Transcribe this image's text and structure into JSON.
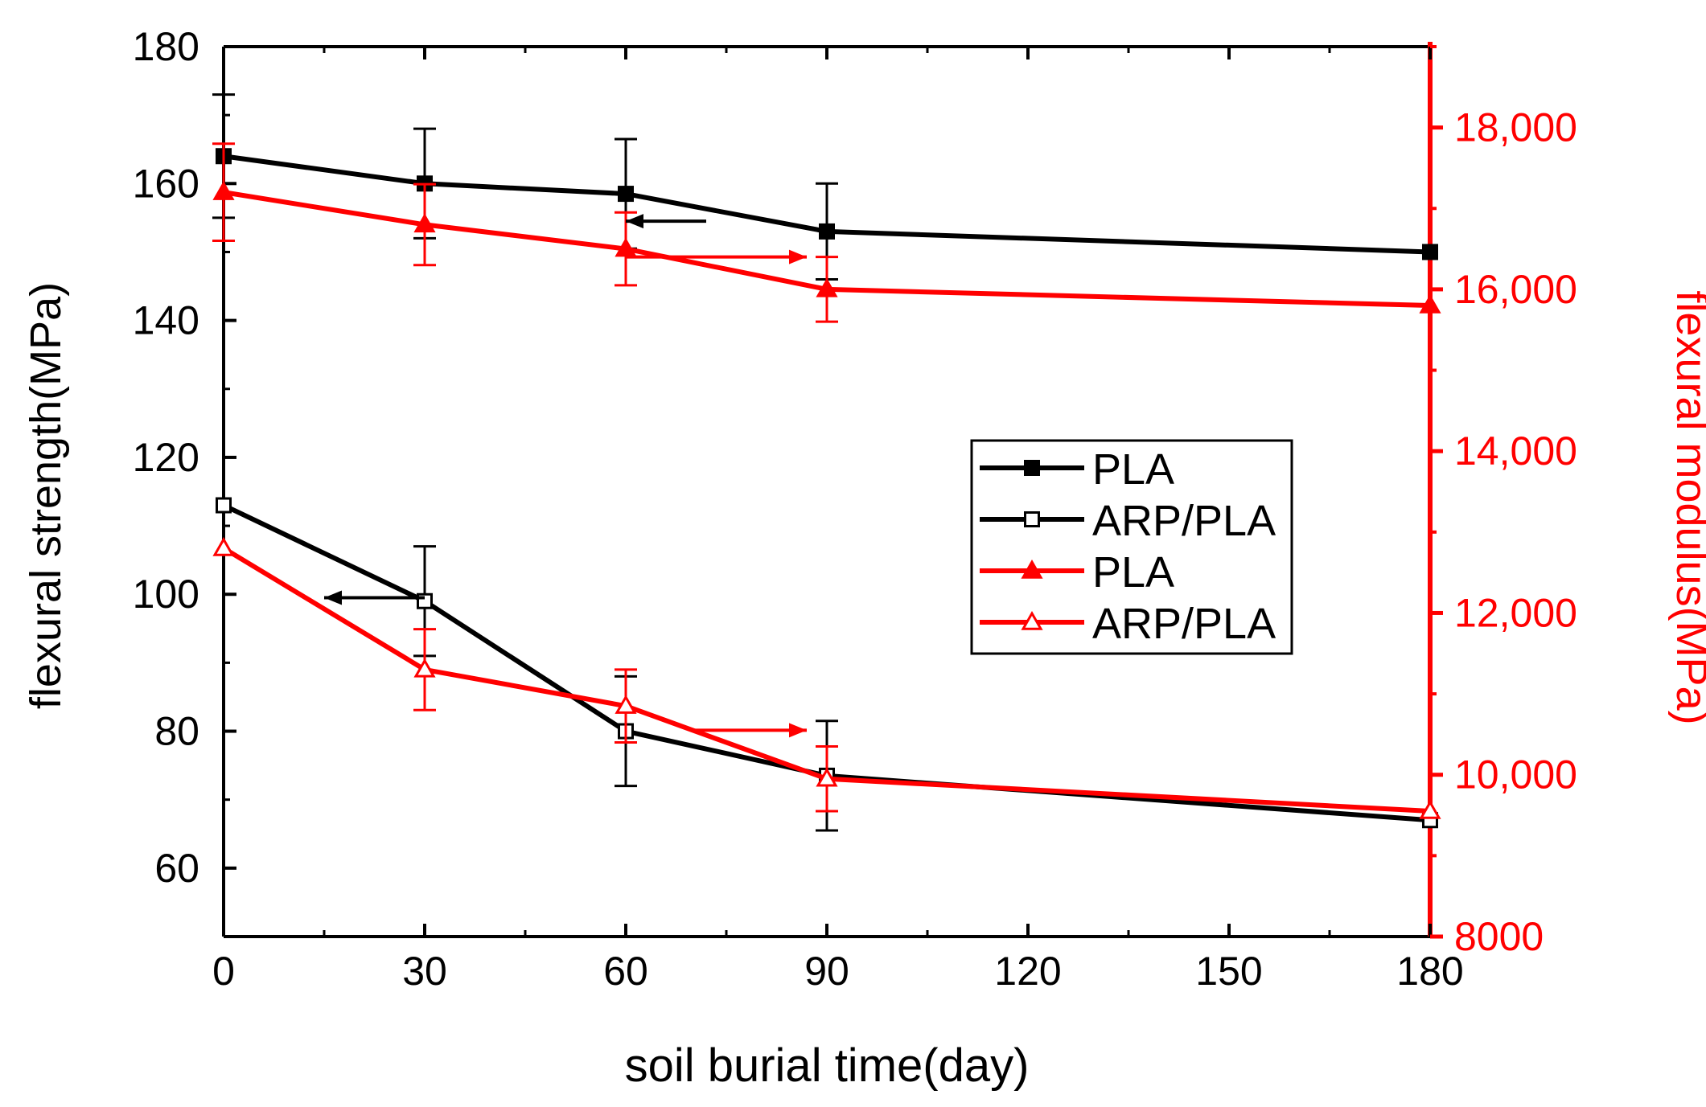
{
  "chart_data": {
    "type": "line",
    "title": "",
    "xlabel": "soil burial time(day)",
    "ylabel": "flexural strength(MPa)",
    "y2label": "flexural modulus(MPa)",
    "x": [
      0,
      30,
      60,
      90,
      180
    ],
    "x_ticks": [
      "0",
      "30",
      "60",
      "90",
      "120",
      "150",
      "180"
    ],
    "x_tick_values": [
      0,
      30,
      60,
      90,
      120,
      150,
      180
    ],
    "xlim": [
      0,
      180
    ],
    "ylim": [
      50,
      180
    ],
    "y_ticks": [
      "60",
      "80",
      "100",
      "120",
      "140",
      "160",
      "180"
    ],
    "y_tick_values": [
      60,
      80,
      100,
      120,
      140,
      160,
      180
    ],
    "y2lim": [
      8000,
      19000
    ],
    "y2_ticks": [
      "8000",
      "10,000",
      "12,000",
      "14,000",
      "16,000",
      "18,000"
    ],
    "y2_tick_values": [
      8000,
      10000,
      12000,
      14000,
      16000,
      18000
    ],
    "grid": false,
    "legend_position": "center-right",
    "colors": {
      "black": "#000000",
      "red": "#ff0000"
    },
    "series": [
      {
        "name": "PLA",
        "axis": "left",
        "quantity": "flexural strength",
        "color": "#000000",
        "marker": "square-filled",
        "values": [
          164,
          160,
          158.5,
          153,
          150
        ],
        "errors": [
          9,
          8,
          8,
          7,
          0
        ]
      },
      {
        "name": "ARP/PLA",
        "axis": "left",
        "quantity": "flexural strength",
        "color": "#000000",
        "marker": "square-open",
        "values": [
          113,
          99,
          80,
          73.5,
          67
        ],
        "errors": [
          0,
          8,
          8,
          8,
          0
        ]
      },
      {
        "name": "PLA",
        "axis": "right",
        "quantity": "flexural modulus",
        "color": "#ff0000",
        "marker": "triangle-filled",
        "values": [
          17200,
          16800,
          16500,
          16000,
          15800
        ],
        "errors": [
          600,
          500,
          450,
          400,
          0
        ]
      },
      {
        "name": "ARP/PLA",
        "axis": "right",
        "quantity": "flexural modulus",
        "color": "#ff0000",
        "marker": "triangle-open",
        "values": [
          12800,
          11300,
          10850,
          9950,
          9550
        ],
        "errors": [
          0,
          500,
          450,
          400,
          0
        ]
      }
    ],
    "annotations": [
      {
        "type": "arrow",
        "direction": "left",
        "color": "#000000",
        "target_axis": "left",
        "x_from": 72,
        "x_to": 60,
        "y": 154.5,
        "note": "PLA strength arrow"
      },
      {
        "type": "arrow",
        "direction": "right",
        "color": "#ff0000",
        "target_axis": "right",
        "x_from": 60,
        "x_to": 87,
        "y": 16400,
        "note": "PLA modulus arrow"
      },
      {
        "type": "arrow",
        "direction": "left",
        "color": "#000000",
        "target_axis": "left",
        "x_from": 30,
        "x_to": 15,
        "y": 99.5,
        "note": "ARP/PLA strength arrow"
      },
      {
        "type": "arrow",
        "direction": "right",
        "color": "#ff0000",
        "target_axis": "right",
        "x_from": 70,
        "x_to": 87,
        "y": 10550,
        "note": "ARP/PLA modulus arrow"
      }
    ]
  }
}
